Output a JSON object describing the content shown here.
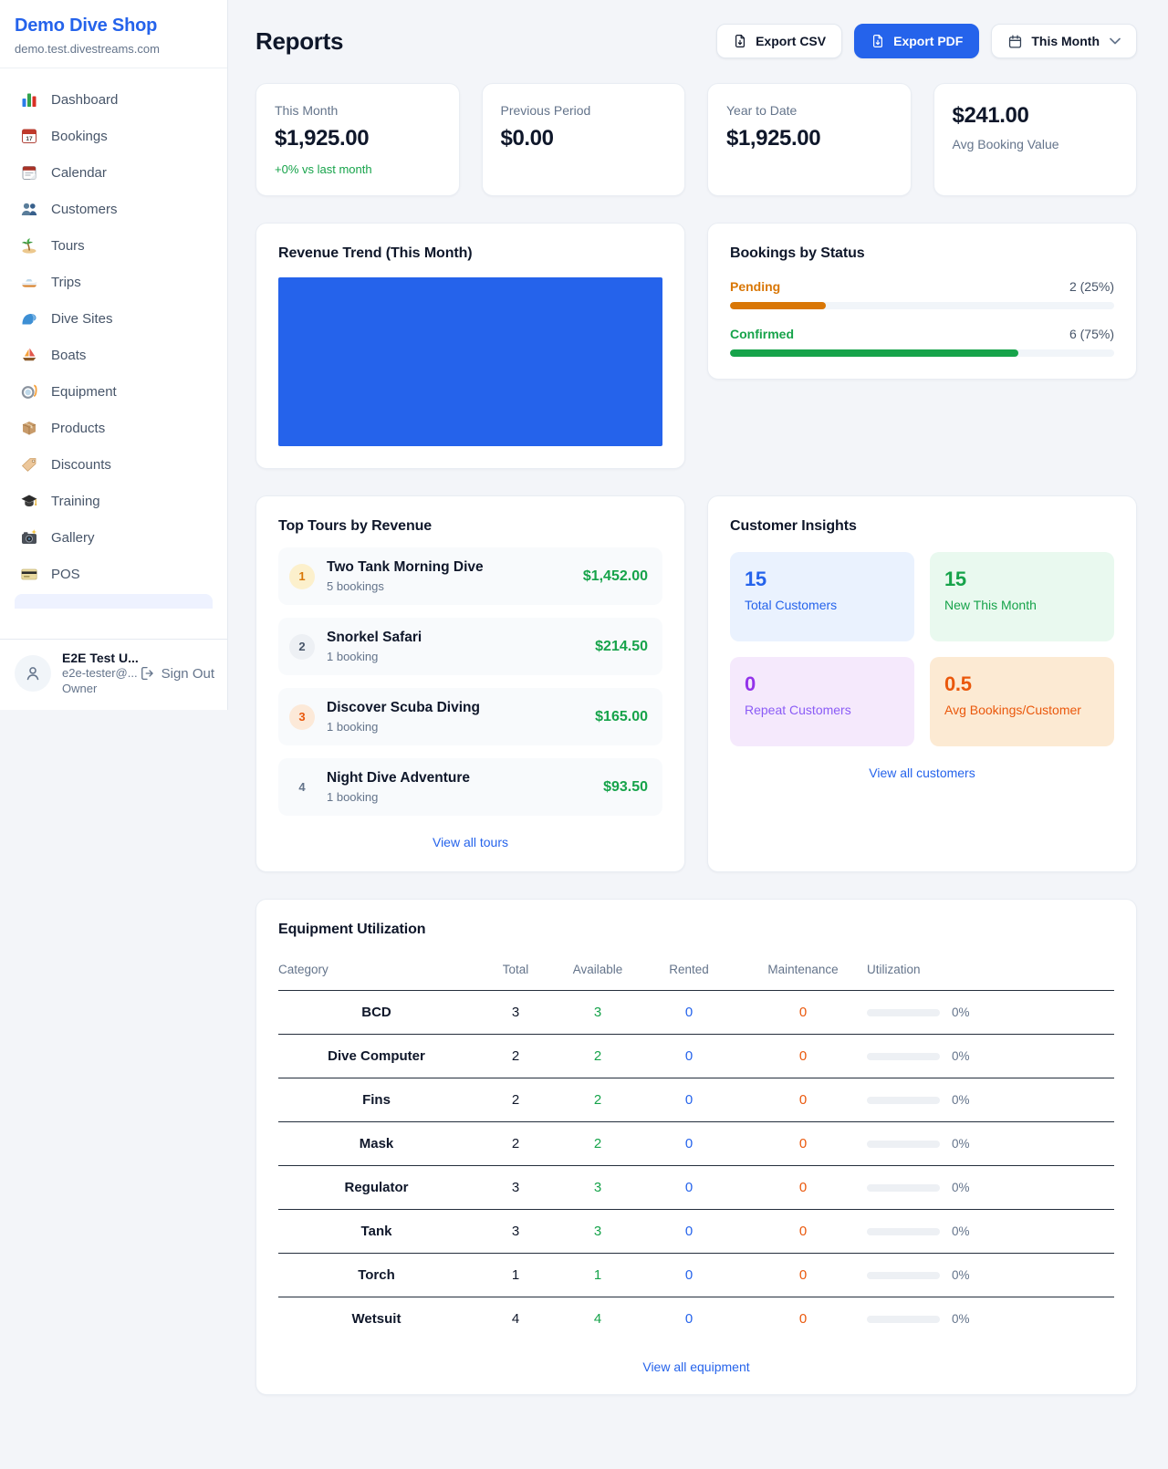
{
  "colors": {
    "brand_primary": "#2563eb",
    "success_green": "#16a34a",
    "pending_orange": "#d97706",
    "maintenance_orange": "#ea580c",
    "repeat_purple": "#9333ea"
  },
  "sidebar": {
    "brand": {
      "name": "Demo Dive Shop",
      "domain": "demo.test.divestreams.com"
    },
    "items": [
      {
        "label": "Dashboard",
        "icon": "dashboard-chart-icon"
      },
      {
        "label": "Bookings",
        "icon": "calendar-17-icon"
      },
      {
        "label": "Calendar",
        "icon": "tear-off-calendar-icon"
      },
      {
        "label": "Customers",
        "icon": "people-icon"
      },
      {
        "label": "Tours",
        "icon": "island-palm-icon"
      },
      {
        "label": "Trips",
        "icon": "speedboat-icon"
      },
      {
        "label": "Dive Sites",
        "icon": "wave-icon"
      },
      {
        "label": "Boats",
        "icon": "sailboat-icon"
      },
      {
        "label": "Equipment",
        "icon": "diving-mask-icon"
      },
      {
        "label": "Products",
        "icon": "package-icon"
      },
      {
        "label": "Discounts",
        "icon": "tag-icon"
      },
      {
        "label": "Training",
        "icon": "graduation-cap-icon"
      },
      {
        "label": "Gallery",
        "icon": "camera-flash-icon"
      },
      {
        "label": "POS",
        "icon": "credit-card-icon"
      }
    ],
    "user": {
      "name": "E2E Test U...",
      "email": "e2e-tester@...",
      "role": "Owner",
      "sign_out_label": "Sign Out"
    }
  },
  "header": {
    "title": "Reports",
    "export_csv_label": "Export CSV",
    "export_pdf_label": "Export PDF",
    "period_selector_label": "This Month"
  },
  "stats": {
    "this_month": {
      "label": "This Month",
      "value": "$1,925.00",
      "delta": "+0% vs last month"
    },
    "previous_period": {
      "label": "Previous Period",
      "value": "$0.00"
    },
    "year_to_date": {
      "label": "Year to Date",
      "value": "$1,925.00"
    },
    "avg_booking": {
      "value": "$241.00",
      "label": "Avg Booking Value"
    }
  },
  "revenue_trend": {
    "title": "Revenue Trend (This Month)",
    "bar_color": "#2563eb"
  },
  "bookings_by_status": {
    "title": "Bookings by Status",
    "rows": [
      {
        "label": "Pending",
        "count_text": "2 (25%)",
        "percent": 25,
        "color": "#d97706"
      },
      {
        "label": "Confirmed",
        "count_text": "6 (75%)",
        "percent": 75,
        "color": "#16a34a"
      }
    ]
  },
  "top_tours": {
    "title": "Top Tours by Revenue",
    "link_label": "View all tours",
    "items": [
      {
        "rank": "1",
        "name": "Two Tank Morning Dive",
        "bookings": "5 bookings",
        "revenue": "$1,452.00"
      },
      {
        "rank": "2",
        "name": "Snorkel Safari",
        "bookings": "1 booking",
        "revenue": "$214.50"
      },
      {
        "rank": "3",
        "name": "Discover Scuba Diving",
        "bookings": "1 booking",
        "revenue": "$165.00"
      },
      {
        "rank": "4",
        "name": "Night Dive Adventure",
        "bookings": "1 booking",
        "revenue": "$93.50"
      }
    ]
  },
  "customer_insights": {
    "title": "Customer Insights",
    "link_label": "View all customers",
    "tiles": [
      {
        "value": "15",
        "label": "Total Customers"
      },
      {
        "value": "15",
        "label": "New This Month"
      },
      {
        "value": "0",
        "label": "Repeat Customers"
      },
      {
        "value": "0.5",
        "label": "Avg Bookings/Customer"
      }
    ]
  },
  "equipment": {
    "title": "Equipment Utilization",
    "link_label": "View all equipment",
    "columns": [
      "Category",
      "Total",
      "Available",
      "Rented",
      "Maintenance",
      "Utilization"
    ],
    "rows": [
      {
        "category": "BCD",
        "total": "3",
        "available": "3",
        "rented": "0",
        "maintenance": "0",
        "utilization": "0%",
        "percent": 0
      },
      {
        "category": "Dive Computer",
        "total": "2",
        "available": "2",
        "rented": "0",
        "maintenance": "0",
        "utilization": "0%",
        "percent": 0
      },
      {
        "category": "Fins",
        "total": "2",
        "available": "2",
        "rented": "0",
        "maintenance": "0",
        "utilization": "0%",
        "percent": 0
      },
      {
        "category": "Mask",
        "total": "2",
        "available": "2",
        "rented": "0",
        "maintenance": "0",
        "utilization": "0%",
        "percent": 0
      },
      {
        "category": "Regulator",
        "total": "3",
        "available": "3",
        "rented": "0",
        "maintenance": "0",
        "utilization": "0%",
        "percent": 0
      },
      {
        "category": "Tank",
        "total": "3",
        "available": "3",
        "rented": "0",
        "maintenance": "0",
        "utilization": "0%",
        "percent": 0
      },
      {
        "category": "Torch",
        "total": "1",
        "available": "1",
        "rented": "0",
        "maintenance": "0",
        "utilization": "0%",
        "percent": 0
      },
      {
        "category": "Wetsuit",
        "total": "4",
        "available": "4",
        "rented": "0",
        "maintenance": "0",
        "utilization": "0%",
        "percent": 0
      }
    ]
  }
}
